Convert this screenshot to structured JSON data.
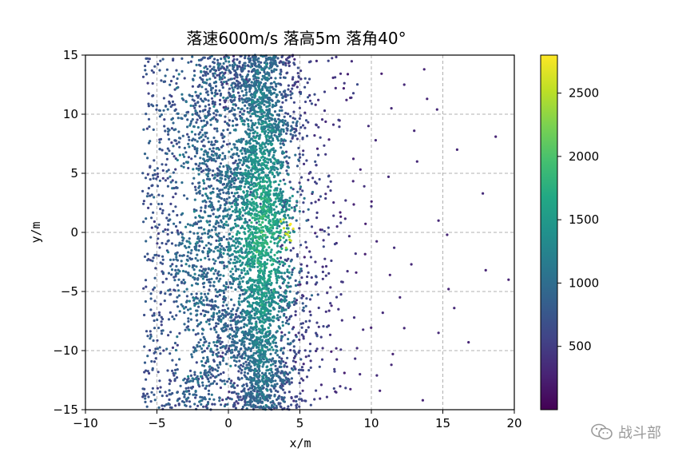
{
  "chart_data": {
    "type": "scatter",
    "title": "落速600m/s 落高5m 落角40°",
    "xlabel": "x/m",
    "ylabel": "y/m",
    "xlim": [
      -10,
      20
    ],
    "ylim": [
      -15,
      15
    ],
    "x_ticks": [
      -10,
      -5,
      0,
      5,
      10,
      15,
      20
    ],
    "y_ticks": [
      -15,
      -10,
      -5,
      0,
      5,
      10,
      15
    ],
    "grid": true,
    "grid_style": "dashed",
    "colormap": "viridis",
    "color_value_range": [
      0,
      2800
    ],
    "colorbar": {
      "ticks": [
        500,
        1000,
        1500,
        2000,
        2500
      ]
    },
    "series": [
      {
        "points": [
          {
            "x": 18.7,
            "y": 8.1,
            "v": 300
          },
          {
            "x": 17.8,
            "y": 3.3,
            "v": 350
          },
          {
            "x": 18.0,
            "y": -3.2,
            "v": 300
          },
          {
            "x": 19.6,
            "y": -4.0,
            "v": 280
          },
          {
            "x": 16.0,
            "y": 7.0,
            "v": 320
          },
          {
            "x": 15.3,
            "y": -0.2,
            "v": 300
          },
          {
            "x": 15.8,
            "y": -6.4,
            "v": 330
          },
          {
            "x": 15.4,
            "y": -4.8,
            "v": 300
          },
          {
            "x": 13.7,
            "y": 13.8,
            "v": 300
          },
          {
            "x": 12.3,
            "y": 12.5,
            "v": 320
          },
          {
            "x": 13.6,
            "y": -14.2,
            "v": 300
          },
          {
            "x": 12.3,
            "y": -8.1,
            "v": 320
          },
          {
            "x": 11.5,
            "y": -10.3,
            "v": 300
          },
          {
            "x": 11.4,
            "y": -11.2,
            "v": 320
          },
          {
            "x": 10.6,
            "y": -13.4,
            "v": 300
          },
          {
            "x": 14.7,
            "y": -8.5,
            "v": 330
          },
          {
            "x": 16.8,
            "y": -9.3,
            "v": 300
          },
          {
            "x": 14.7,
            "y": 1.0,
            "v": 320
          },
          {
            "x": 13.2,
            "y": 6.0,
            "v": 330
          },
          {
            "x": 12.8,
            "y": -2.7,
            "v": 320
          },
          {
            "x": 11.3,
            "y": -3.6,
            "v": 300
          },
          {
            "x": 10.0,
            "y": 2.2,
            "v": 400
          },
          {
            "x": 10.3,
            "y": 7.8,
            "v": 350
          },
          {
            "x": 11.4,
            "y": 10.5,
            "v": 330
          },
          {
            "x": 9.8,
            "y": 9.0,
            "v": 380
          },
          {
            "x": 8.6,
            "y": 11.4,
            "v": 420
          },
          {
            "x": 7.5,
            "y": 12.2,
            "v": 360
          },
          {
            "x": 6.1,
            "y": 10.8,
            "v": 420
          },
          {
            "x": 5.9,
            "y": 4.6,
            "v": 500
          },
          {
            "x": 6.8,
            "y": 6.6,
            "v": 480
          },
          {
            "x": 7.2,
            "y": -2.4,
            "v": 520
          },
          {
            "x": 8.0,
            "y": -4.2,
            "v": 460
          },
          {
            "x": 7.7,
            "y": -6.5,
            "v": 430
          },
          {
            "x": 8.8,
            "y": -7.2,
            "v": 400
          },
          {
            "x": 6.6,
            "y": -9.8,
            "v": 420
          },
          {
            "x": 5.2,
            "y": -13.4,
            "v": 380
          },
          {
            "x": 6.5,
            "y": -12.9,
            "v": 350
          },
          {
            "x": 9.2,
            "y": -12.0,
            "v": 360
          },
          {
            "x": 6.3,
            "y": 8.9,
            "v": 520
          },
          {
            "x": 8.9,
            "y": -1.8,
            "v": 440
          },
          {
            "x": 9.5,
            "y": 3.9,
            "v": 410
          },
          {
            "x": 11.2,
            "y": 4.7,
            "v": 360
          },
          {
            "x": 11.6,
            "y": -1.3,
            "v": 380
          },
          {
            "x": 13.0,
            "y": 8.6,
            "v": 320
          },
          {
            "x": 8.2,
            "y": 2.7,
            "v": 460
          },
          {
            "x": 7.0,
            "y": 0.4,
            "v": 600
          },
          {
            "x": 9.0,
            "y": -9.8,
            "v": 380
          },
          {
            "x": 12.0,
            "y": -5.5,
            "v": 330
          },
          {
            "x": 10.8,
            "y": -6.8,
            "v": 350
          },
          {
            "x": 13.9,
            "y": 11.3,
            "v": 300
          },
          {
            "x": 14.6,
            "y": 10.4,
            "v": 320
          }
        ]
      }
    ]
  },
  "watermark": {
    "text": "战斗部"
  },
  "colors": {
    "axis": "#000000",
    "grid": "#b0b0b0",
    "watermark": "#9a9a9a"
  },
  "icons": {
    "watermark_icon": "wechat-icon"
  }
}
